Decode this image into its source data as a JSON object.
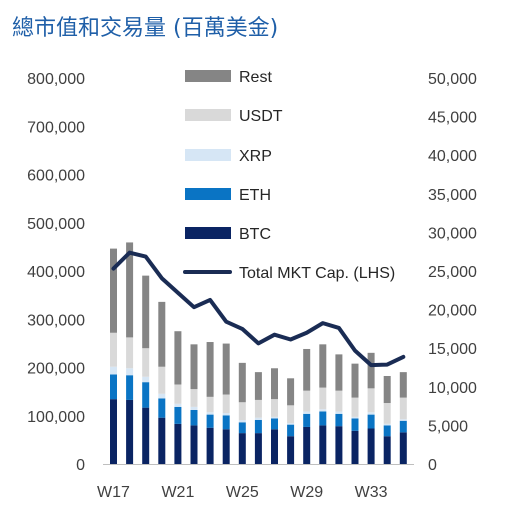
{
  "chart_data": {
    "type": "bar",
    "title": "總市值和交易量 (百萬美金)",
    "categories": [
      "W17",
      "W18",
      "W19",
      "W20",
      "W21",
      "W22",
      "W23",
      "W24",
      "W25",
      "W26",
      "W27",
      "W28",
      "W29",
      "W30",
      "W31",
      "W32",
      "W33",
      "W34",
      "W35"
    ],
    "x_tick_labels": [
      "W17",
      "W21",
      "W25",
      "W29",
      "W33"
    ],
    "series": [
      {
        "name": "BTC",
        "kind": "stacked_bar",
        "axis": "right",
        "color": "#0a2463",
        "values": [
          8400,
          8300,
          7300,
          6000,
          5200,
          5000,
          4700,
          4500,
          4000,
          4000,
          4500,
          3600,
          4800,
          5000,
          4900,
          4300,
          4600,
          3600,
          4100
        ]
      },
      {
        "name": "ETH",
        "kind": "stacked_bar",
        "axis": "right",
        "color": "#0a74c4",
        "values": [
          3200,
          3200,
          3300,
          2500,
          2200,
          2000,
          1700,
          1800,
          1400,
          1700,
          1400,
          1500,
          1700,
          1800,
          1600,
          1600,
          1800,
          1400,
          1500
        ]
      },
      {
        "name": "XRP",
        "kind": "stacked_bar",
        "axis": "right",
        "color": "#d6e6f5",
        "values": [
          1000,
          900,
          700,
          600,
          400,
          400,
          300,
          300,
          300,
          300,
          200,
          200,
          300,
          300,
          300,
          200,
          300,
          200,
          200
        ]
      },
      {
        "name": "USDT",
        "kind": "stacked_bar",
        "axis": "right",
        "color": "#d9d9d9",
        "values": [
          4400,
          4000,
          3700,
          3500,
          2500,
          2300,
          2000,
          2400,
          2300,
          2300,
          2300,
          2300,
          2700,
          2800,
          2700,
          2500,
          3100,
          2700,
          2800
        ]
      },
      {
        "name": "Rest",
        "kind": "stacked_bar",
        "axis": "right",
        "color": "#858585",
        "values": [
          10900,
          12300,
          9400,
          8400,
          6900,
          5800,
          7100,
          6600,
          5100,
          3600,
          4000,
          3500,
          5400,
          5600,
          4700,
          4400,
          4600,
          3500,
          3300
        ]
      },
      {
        "name": "Total MKT Cap. (LHS)",
        "kind": "line",
        "axis": "left",
        "color": "#1a2c54",
        "values": [
          405000,
          438000,
          430000,
          385000,
          355000,
          325000,
          340000,
          295000,
          280000,
          250000,
          268000,
          258000,
          272000,
          292000,
          282000,
          235000,
          205000,
          206000,
          222000
        ]
      }
    ],
    "y_left": {
      "min": 0,
      "max": 800000,
      "ticks": [
        "0",
        "100,000",
        "200,000",
        "300,000",
        "400,000",
        "500,000",
        "600,000",
        "700,000",
        "800,000"
      ]
    },
    "y_right": {
      "min": 0,
      "max": 50000,
      "ticks": [
        "0",
        "5,000",
        "10,000",
        "15,000",
        "20,000",
        "25,000",
        "30,000",
        "35,000",
        "40,000",
        "45,000",
        "50,000"
      ]
    },
    "legend_position": "top-center",
    "legend_order": [
      "Rest",
      "USDT",
      "XRP",
      "ETH",
      "BTC",
      "Total MKT Cap. (LHS)"
    ],
    "grid": false
  }
}
